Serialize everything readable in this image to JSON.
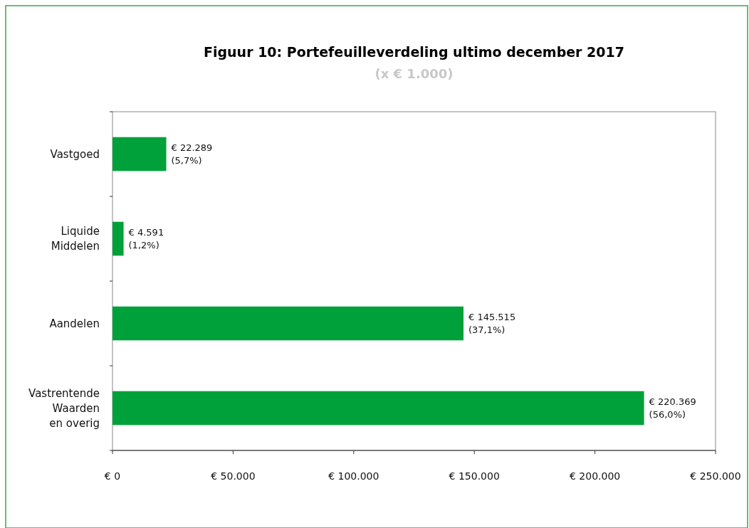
{
  "chart_data": {
    "type": "bar",
    "orientation": "horizontal",
    "title": "Figuur 10: Portefeuilleverdeling ultimo december 2017",
    "subtitle": "(x € 1.000)",
    "categories": [
      "Vastgoed",
      "Liquide\nMiddelen",
      "Aandelen",
      "Vastrentende\nWaarden\nen overig"
    ],
    "values": [
      22289,
      4591,
      145515,
      220369
    ],
    "value_labels": [
      "€ 22.289\n(5,7%)",
      "€ 4.591\n(1,2%)",
      "€ 145.515\n(37,1%)",
      "€ 220.369\n(56,0%)"
    ],
    "color": "#00a13a",
    "xlim": [
      0,
      250000
    ],
    "xticks": [
      {
        "value": 0,
        "label": "€ 0"
      },
      {
        "value": 50000,
        "label": "€ 50.000"
      },
      {
        "value": 100000,
        "label": "€ 100.000"
      },
      {
        "value": 150000,
        "label": "€ 150.000"
      },
      {
        "value": 200000,
        "label": "€ 200.000"
      },
      {
        "value": 250000,
        "label": "€ 250.000"
      }
    ],
    "grid": false
  }
}
